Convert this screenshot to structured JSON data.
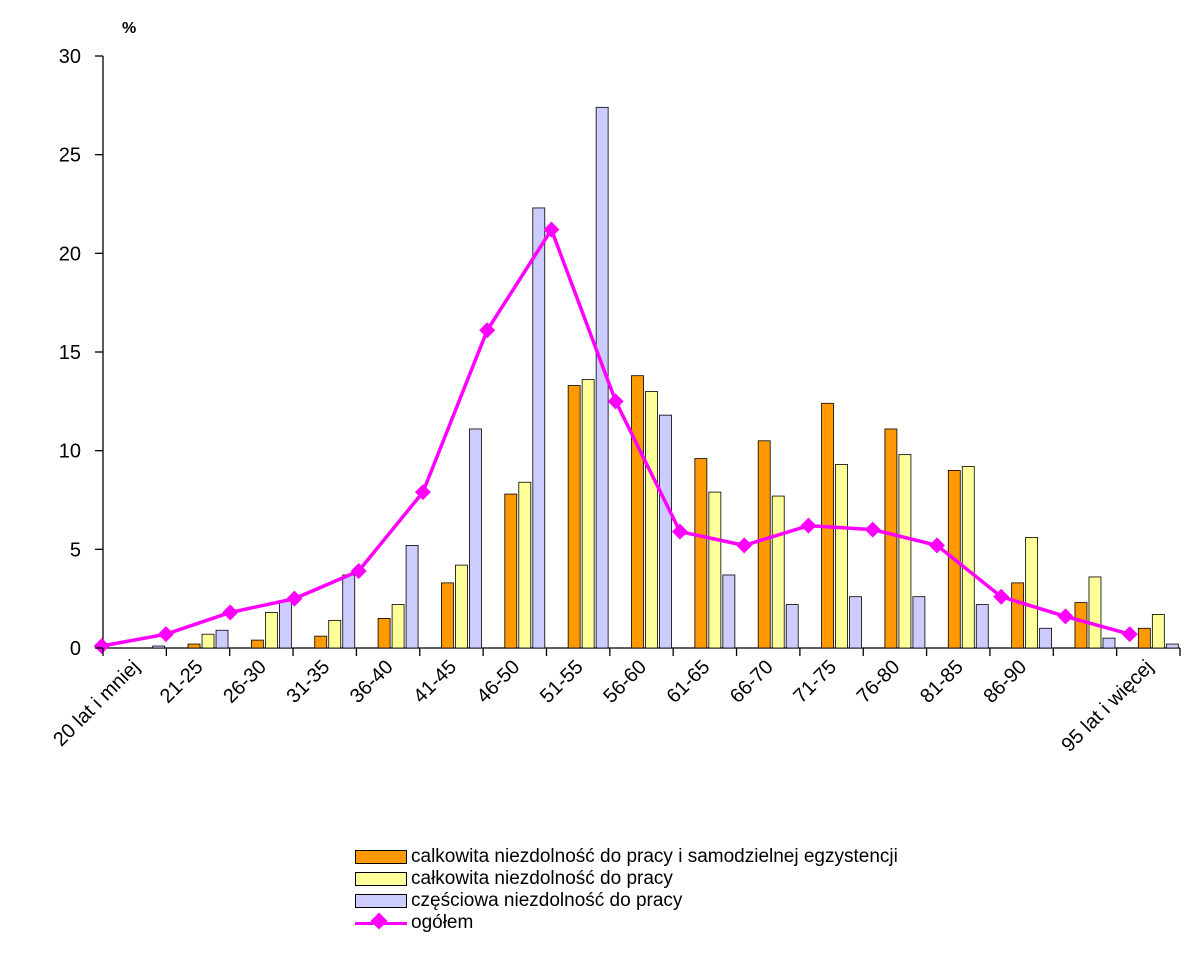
{
  "chart_data": {
    "type": "bar",
    "ylabel": "%",
    "ylim": [
      0,
      30
    ],
    "yticks": [
      0,
      5,
      10,
      15,
      20,
      25,
      30
    ],
    "categories": [
      "20 lat i mniej",
      "21-25",
      "26-30",
      "31-35",
      "36-40",
      "41-45",
      "46-50",
      "51-55",
      "56-60",
      "61-65",
      "66-70",
      "71-75",
      "76-80",
      "81-85",
      "86-90",
      "",
      "95 lat i więcej"
    ],
    "series": [
      {
        "name": "całkowita niezdolność do pracy i samodzielnej egzystencji",
        "label": "calkowita niezdolność do pracy i samodzielnej egzystencji",
        "type": "bar",
        "color": "#FF9900",
        "values": [
          0,
          0.2,
          0.4,
          0.6,
          1.5,
          3.3,
          7.8,
          13.3,
          13.8,
          9.6,
          10.5,
          12.4,
          11.1,
          9.0,
          3.3,
          2.3,
          1.0
        ]
      },
      {
        "name": "całkowita niezdolność do pracy",
        "label": "całkowita niezdolność do pracy",
        "type": "bar",
        "color": "#FFFF99",
        "values": [
          0,
          0.7,
          1.8,
          1.4,
          2.2,
          4.2,
          8.4,
          13.6,
          13.0,
          7.9,
          7.7,
          9.3,
          9.8,
          9.2,
          5.6,
          3.6,
          1.7
        ]
      },
      {
        "name": "częściowa niezdolność do pracy",
        "label": "częściowa niezdolność do pracy",
        "type": "bar",
        "color": "#CCCCFF",
        "values": [
          0.1,
          0.9,
          2.4,
          3.7,
          5.2,
          11.1,
          22.3,
          27.4,
          11.8,
          3.7,
          2.2,
          2.6,
          2.6,
          2.2,
          1.0,
          0.5,
          0.2
        ]
      },
      {
        "name": "ogółem",
        "label": "ogółem",
        "type": "line",
        "color": "#FF00FF",
        "values": [
          0.1,
          0.7,
          1.8,
          2.5,
          3.9,
          7.9,
          16.1,
          21.2,
          12.5,
          5.9,
          5.2,
          6.2,
          6.0,
          5.2,
          2.6,
          1.6,
          0.7
        ]
      }
    ],
    "legend_position": "bottom",
    "grid": false
  }
}
